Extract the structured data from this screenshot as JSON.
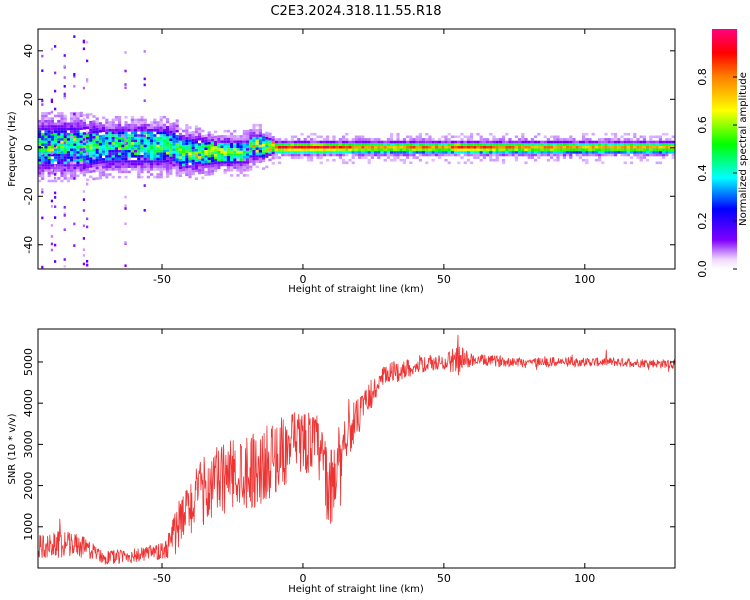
{
  "chart_data": [
    {
      "type": "heatmap",
      "title": "C2E3.2024.318.11.55.R18",
      "xlabel": "Height of straight line (km)",
      "ylabel": "Frequency (Hz)",
      "xlim": [
        -94,
        132
      ],
      "ylim": [
        -50,
        49
      ],
      "xticks": [
        -50,
        0,
        50,
        100
      ],
      "xtick_labels": [
        "-50",
        "0",
        "50",
        "100"
      ],
      "yticks": [
        -40,
        -20,
        0,
        20,
        40
      ],
      "ytick_labels": [
        "-40",
        "-20",
        "0",
        "20",
        "40"
      ],
      "colorbar": {
        "label": "Normalized spectral amplitude",
        "range": [
          0,
          1
        ],
        "ticks": [
          0.0,
          0.2,
          0.4,
          0.6,
          0.8
        ],
        "tick_labels": [
          "0.0",
          "0.2",
          "0.4",
          "0.6",
          "0.8"
        ]
      },
      "band_amplitude_profile": {
        "x": [
          -94,
          -80,
          -70,
          -60,
          -50,
          -40,
          -30,
          -20,
          -15,
          -10,
          0,
          10,
          20,
          30,
          40,
          50,
          55,
          60,
          80,
          100,
          120,
          132
        ],
        "amplitude": [
          0.45,
          0.45,
          0.45,
          0.42,
          0.45,
          0.55,
          0.6,
          0.55,
          0.55,
          0.8,
          0.88,
          0.85,
          0.75,
          0.7,
          0.75,
          0.7,
          0.85,
          0.78,
          0.72,
          0.7,
          0.7,
          0.7
        ],
        "band_halfwidth_hz": [
          7,
          7,
          6,
          6,
          6,
          5,
          4,
          4,
          4,
          2,
          2,
          2,
          2,
          2,
          2,
          2,
          2,
          2,
          2,
          2,
          2,
          2
        ]
      }
    },
    {
      "type": "line",
      "title": "",
      "xlabel": "Height of straight line (km)",
      "ylabel": "SNR (10 * v/v)",
      "color": "#ee3333",
      "xlim": [
        -94,
        132
      ],
      "ylim": [
        0,
        5800
      ],
      "xticks": [
        -50,
        0,
        50,
        100
      ],
      "xtick_labels": [
        "-50",
        "0",
        "50",
        "100"
      ],
      "yticks": [
        1000,
        2000,
        3000,
        4000,
        5000
      ],
      "ytick_labels": [
        "1000",
        "2000",
        "3000",
        "4000",
        "5000"
      ],
      "x": [
        -94,
        -85,
        -80,
        -75,
        -70,
        -60,
        -50,
        -45,
        -40,
        -35,
        -30,
        -25,
        -20,
        -15,
        -10,
        -5,
        0,
        5,
        10,
        12,
        15,
        20,
        25,
        30,
        40,
        50,
        55,
        60,
        70,
        80,
        90,
        100,
        110,
        120,
        132
      ],
      "mean": [
        500,
        600,
        550,
        420,
        250,
        300,
        380,
        900,
        1500,
        1900,
        2100,
        2300,
        2400,
        2400,
        2700,
        2900,
        3100,
        3000,
        1800,
        2600,
        3200,
        3700,
        4300,
        4700,
        4900,
        5000,
        5050,
        5050,
        5020,
        5000,
        5000,
        5000,
        5000,
        4980,
        4950
      ],
      "noise": [
        300,
        350,
        300,
        200,
        180,
        180,
        220,
        600,
        700,
        850,
        900,
        900,
        950,
        950,
        900,
        850,
        800,
        750,
        1100,
        800,
        650,
        450,
        350,
        300,
        200,
        180,
        400,
        150,
        130,
        120,
        120,
        110,
        110,
        110,
        110
      ]
    }
  ]
}
